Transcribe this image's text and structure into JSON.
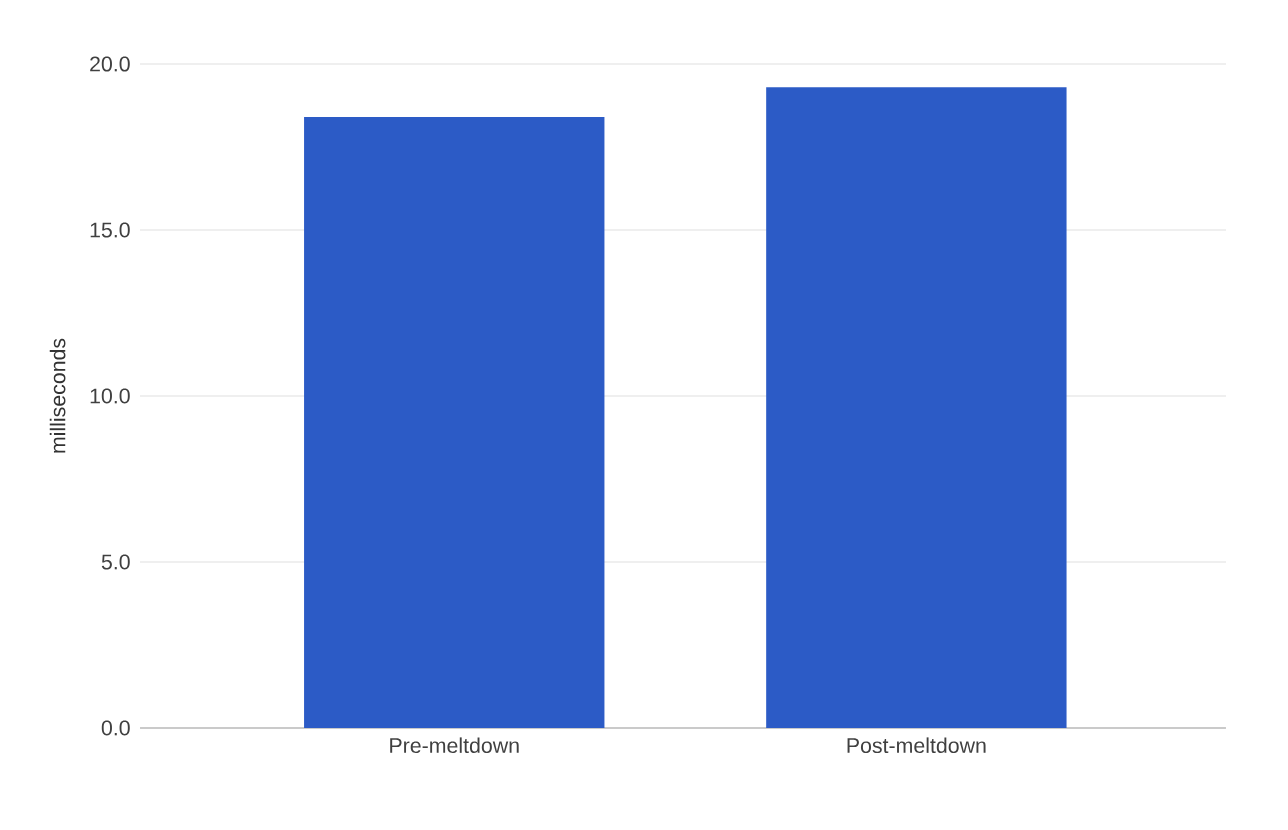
{
  "chart_data": {
    "type": "bar",
    "ylabel": "milliseconds",
    "categories": [
      "Pre-meltdown",
      "Post-meltdown"
    ],
    "values": [
      18.4,
      19.3
    ],
    "color": "#2c5bc6",
    "ylim": [
      0,
      20
    ],
    "yticks": [
      {
        "value": 0,
        "label": "0.0"
      },
      {
        "value": 5,
        "label": "5.0"
      },
      {
        "value": 10,
        "label": "10.0"
      },
      {
        "value": 15,
        "label": "15.0"
      },
      {
        "value": 20,
        "label": "20.0"
      }
    ],
    "grid": "y"
  }
}
